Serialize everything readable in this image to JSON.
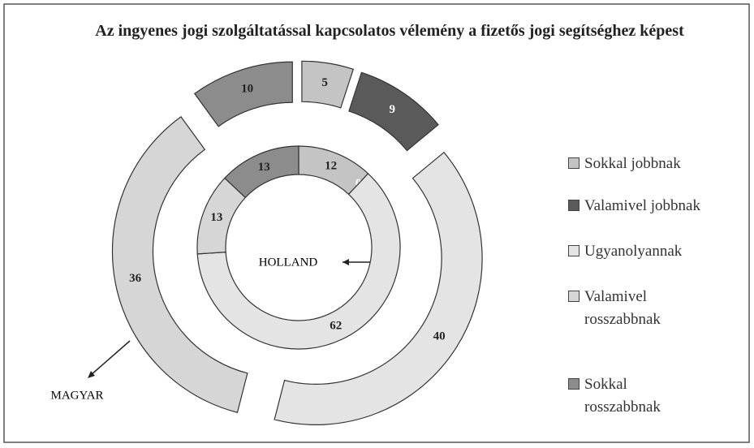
{
  "chart_data": {
    "type": "doughnut",
    "title": "Az ingyenes jogi szolgáltatással kapcsolatos vélemény a fizetős jogi segítséghez képest",
    "categories": [
      "Sokkal jobbnak",
      "Valamivel jobbnak",
      "Ugyanolyannak",
      "Valamivel rosszabbnak",
      "Sokkal rosszabbnak"
    ],
    "colors": [
      "#c4c4c4",
      "#5a5a5a",
      "#e4e4e4",
      "#d6d6d6",
      "#8c8c8c"
    ],
    "series": [
      {
        "name": "HOLLAND",
        "values": [
          12,
          0,
          62,
          13,
          13
        ]
      },
      {
        "name": "MAGYAR",
        "values": [
          5,
          9,
          40,
          36,
          10
        ]
      }
    ]
  }
}
